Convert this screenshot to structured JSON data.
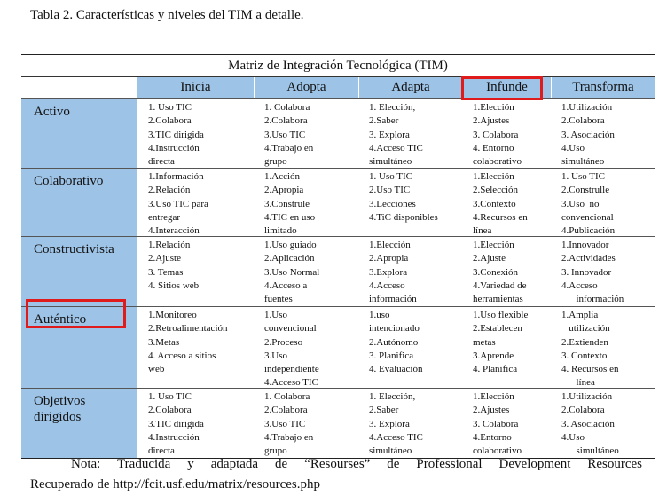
{
  "caption": "Tabla 2. Características y niveles del TIM a detalle.",
  "matrix_title": "Matriz de Integración Tecnológica (TIM)",
  "columns": [
    "Inicia",
    "Adopta",
    "Adapta",
    "Infunde",
    "Transforma"
  ],
  "rows": [
    {
      "label": "Activo",
      "cells": [
        "1. Uso TIC\n2.Colabora\n3.TIC dirigida\n4.Instrucción\ndirecta",
        "1. Colabora\n2.Colabora\n3.Uso TIC\n4.Trabajo en\ngrupo",
        "1. Elección,\n2.Saber\n3. Explora\n4.Acceso TIC\nsimultáneo",
        "1.Elección\n2.Ajustes\n3. Colabora\n4. Entorno\ncolaborativo",
        "1.Utilización\n2.Colabora\n3. Asociación\n4.Uso\nsimultáneo"
      ]
    },
    {
      "label": "Colaborativo",
      "cells": [
        "1.Información\n2.Relación\n3.Uso TIC para\nentregar\n4.Interacción",
        "1.Acción\n2.Apropia\n3.Construle\n4.TIC en uso\nlimitado",
        "1. Uso TIC\n2.Uso TIC\n3.Lecciones\n4.TiC disponibles",
        "1.Elección\n2.Selección\n3.Contexto\n4.Recursos en\nlínea",
        "1. Uso TIC\n2.Construlle\n3.Uso  no\nconvencional\n4.Publicación"
      ]
    },
    {
      "label": "Constructivista",
      "cells": [
        "1.Relación\n2.Ajuste\n3. Temas\n4. Sitios web",
        "1.Uso guiado\n2.Aplicación\n3.Uso Normal\n4.Acceso a\nfuentes",
        "1.Elección\n2.Apropia\n3.Explora\n4.Acceso\ninformación",
        "1.Elección\n2.Ajuste\n3.Conexión\n4.Variedad de\nherramientas",
        "1.Innovador\n2.Actividades\n3. Innovador\n4.Acceso\n      información"
      ]
    },
    {
      "label": "Auténtico",
      "cells": [
        "1.Monitoreo\n2.Retroalimentación\n3.Metas\n4. Acceso a sitios\nweb",
        "1.Uso\nconvencional\n2.Proceso\n3.Uso\nindependiente\n4.Acceso TIC",
        "1.uso\nintencionado\n2.Autónomo\n3. Planifica\n4. Evaluación",
        "1.Uso flexible\n2.Establecen\nmetas\n3.Aprende\n4. Planifica",
        "1.Amplia\n   utilización\n2.Extienden\n3. Contexto\n4. Recursos en\n      línea"
      ]
    },
    {
      "label": "Objetivos\ndirigidos",
      "cells": [
        "1. Uso TIC\n2.Colabora\n3.TIC dirigida\n4.Instrucción\ndirecta",
        "1. Colabora\n2.Colabora\n3.Uso TIC\n4.Trabajo en\ngrupo",
        "1. Elección,\n2.Saber\n3. Explora\n4.Acceso TIC\nsimultáneo",
        "1.Elección\n2.Ajustes\n3. Colabora\n4.Entorno\ncolaborativo",
        "1.Utilización\n2.Colabora\n3. Asociación\n4.Uso\n      simultáneo"
      ]
    }
  ],
  "note_line1": "Nota: Traducida y adaptada de “Resourses” de Professional Development Resources",
  "note_line2": "Recuperado de http://fcit.usf.edu/matrix/resources.php",
  "highlight_color": "#e01b1b",
  "header_color": "#9dc3e6"
}
